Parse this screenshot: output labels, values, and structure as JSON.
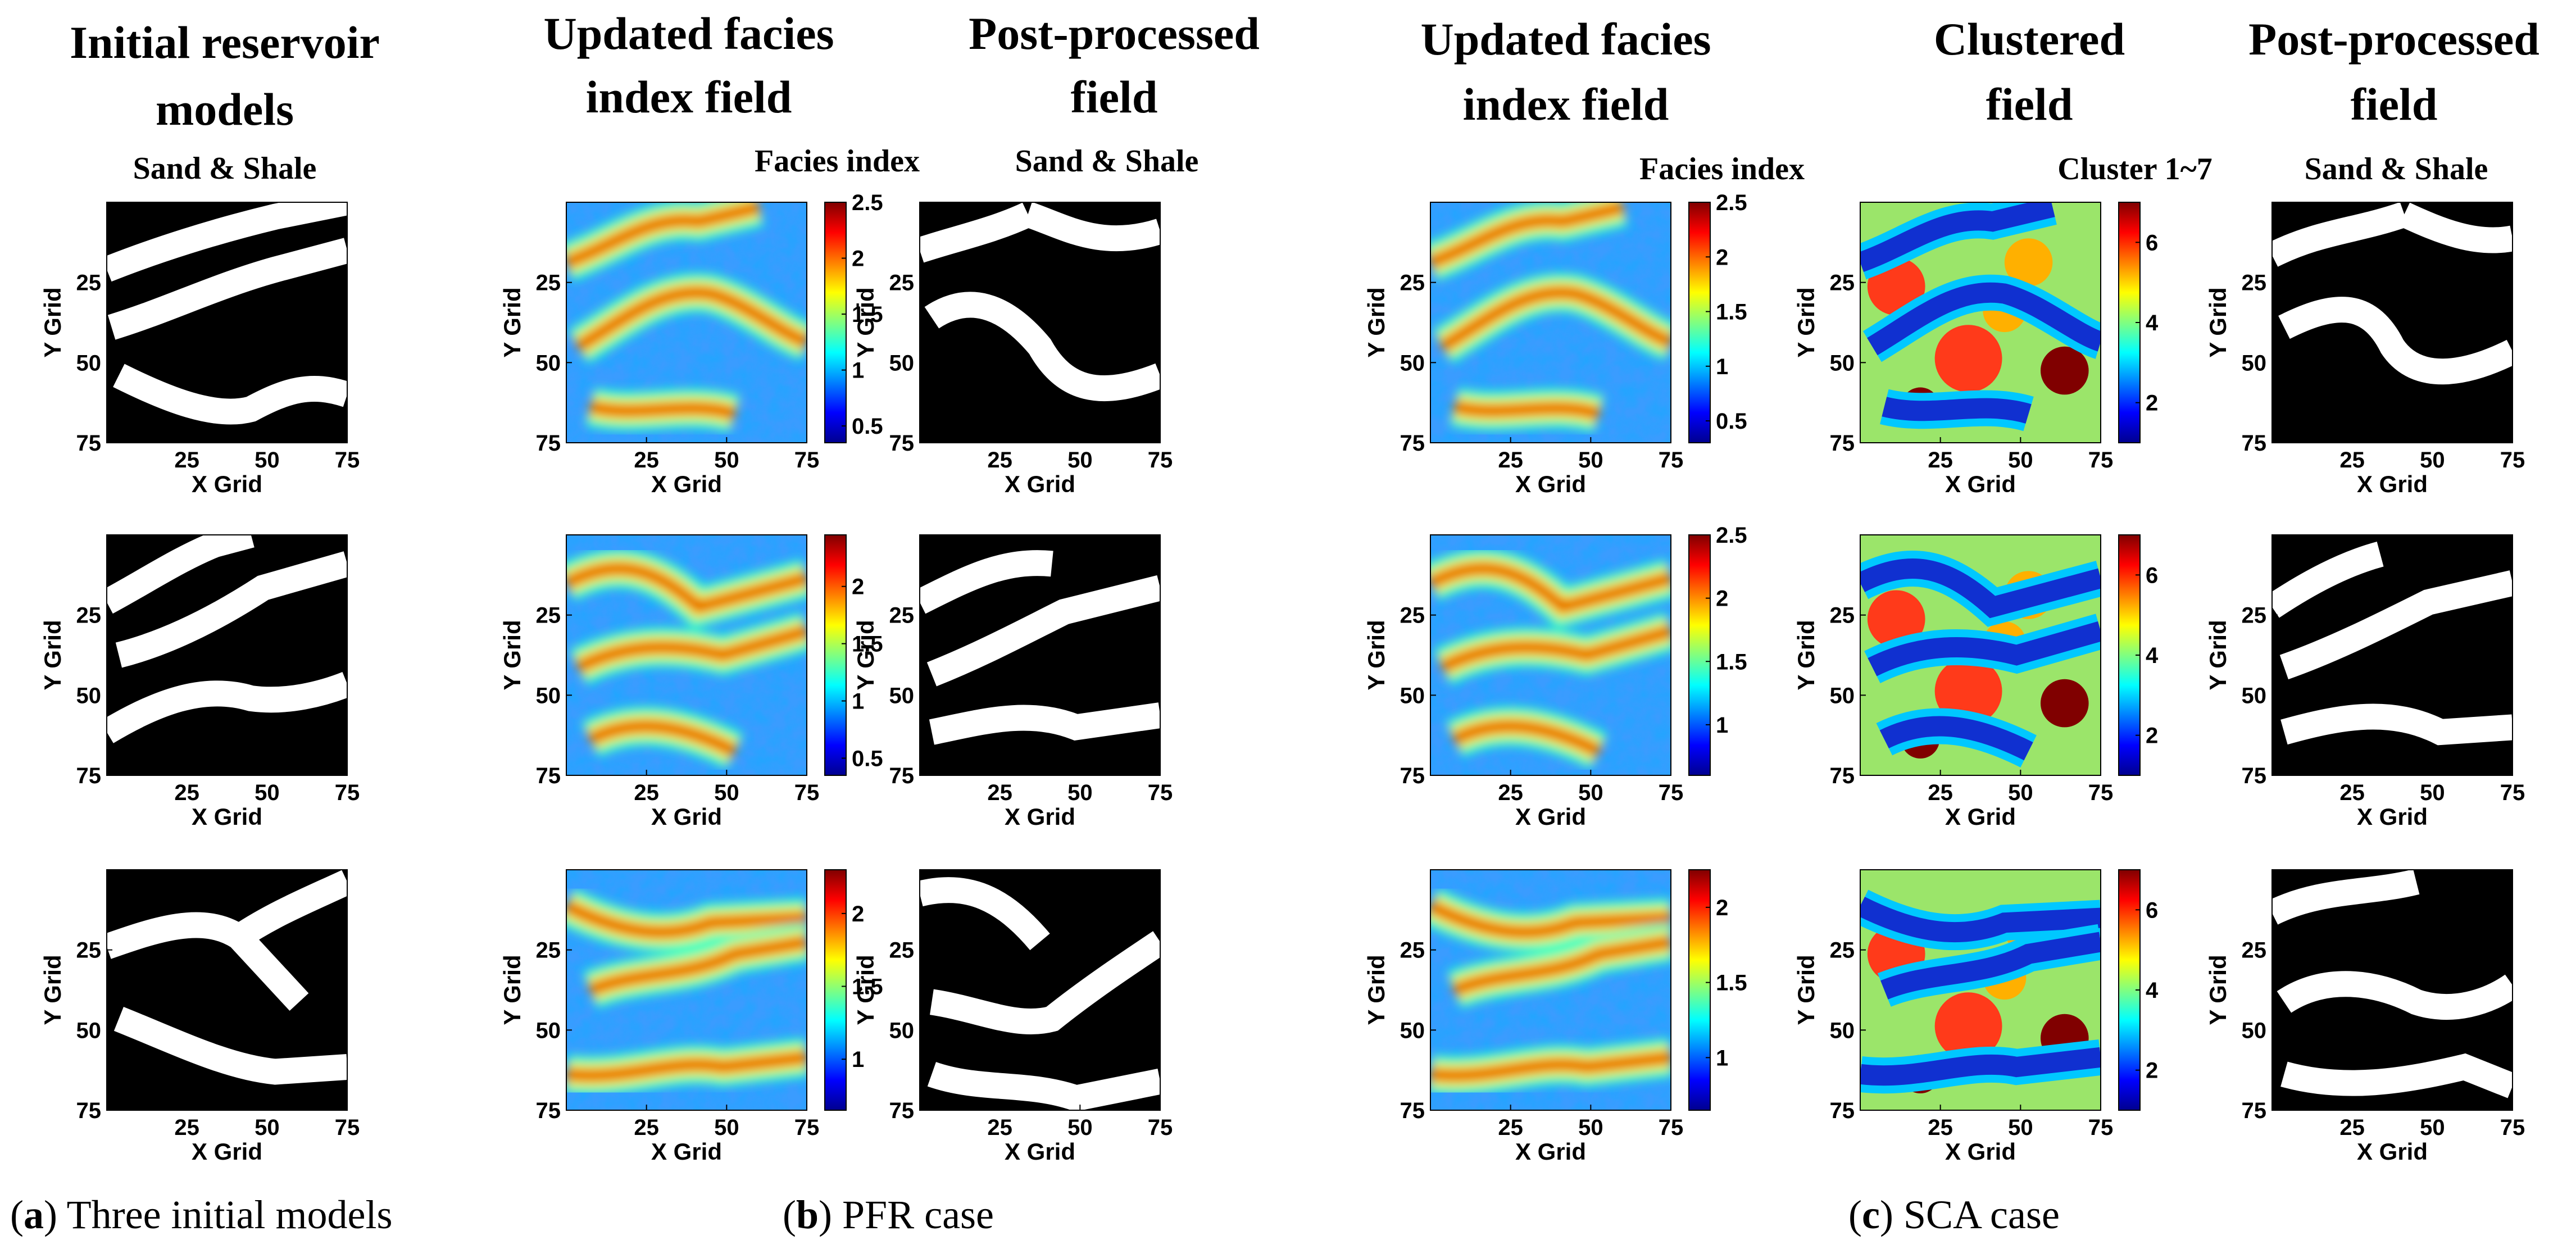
{
  "figure": {
    "column_titles": {
      "initial": [
        "Initial reservoir",
        "models"
      ],
      "pfr_updated": [
        "Updated facies",
        "index field"
      ],
      "pfr_post": [
        "Post-processed",
        "field"
      ],
      "sca_updated": [
        "Updated facies",
        "index field"
      ],
      "sca_clustered": [
        "Clustered",
        "field"
      ],
      "sca_post": [
        "Post-processed",
        "field"
      ]
    },
    "legend_labels": {
      "sand_shale": "Sand & Shale",
      "facies_index": "Facies index",
      "cluster": "Cluster 1~7"
    },
    "captions": {
      "a_letter": "a",
      "a_text": " Three initial models",
      "b_letter": "b",
      "b_text": " PFR case",
      "c_letter": "c",
      "c_text": " SCA case"
    },
    "axis": {
      "xlabel": "X Grid",
      "ylabel": "Y Grid",
      "ticks": [
        "25",
        "50",
        "75"
      ]
    },
    "colors": {
      "sand": "#ffffff",
      "shale": "#000000",
      "jet_low": "#00008f",
      "jet_high": "#800000"
    }
  },
  "chart_data": [
    {
      "type": "heatmap",
      "panel": "initial",
      "row": 1,
      "title": "Sand & Shale",
      "grid": [
        75,
        75
      ],
      "xlabel": "X Grid",
      "ylabel": "Y Grid",
      "xticks": [
        25,
        50,
        75
      ],
      "yticks": [
        25,
        50,
        75
      ],
      "categories": [
        "Shale",
        "Sand"
      ]
    },
    {
      "type": "heatmap",
      "panel": "initial",
      "row": 2,
      "grid": [
        75,
        75
      ],
      "xlabel": "X Grid",
      "ylabel": "Y Grid",
      "xticks": [
        25,
        50,
        75
      ],
      "yticks": [
        25,
        50,
        75
      ],
      "categories": [
        "Shale",
        "Sand"
      ]
    },
    {
      "type": "heatmap",
      "panel": "initial",
      "row": 3,
      "grid": [
        75,
        75
      ],
      "xlabel": "X Grid",
      "ylabel": "Y Grid",
      "xticks": [
        25,
        50,
        75
      ],
      "yticks": [
        25,
        50,
        75
      ],
      "categories": [
        "Shale",
        "Sand"
      ]
    },
    {
      "type": "heatmap",
      "panel": "pfr_updated",
      "row": 1,
      "title": "Facies index",
      "colorscale": "jet",
      "clim": [
        0.35,
        2.5
      ],
      "colorbar_ticks": [
        "0.5",
        "1",
        "1.5",
        "2",
        "2.5"
      ],
      "grid": [
        75,
        75
      ],
      "xlabel": "X Grid",
      "ylabel": "Y Grid",
      "xticks": [
        25,
        50,
        75
      ],
      "yticks": [
        25,
        50,
        75
      ]
    },
    {
      "type": "heatmap",
      "panel": "pfr_updated",
      "row": 2,
      "colorscale": "jet",
      "clim": [
        0.35,
        2.45
      ],
      "colorbar_ticks": [
        "0.5",
        "1",
        "1.5",
        "2"
      ],
      "grid": [
        75,
        75
      ],
      "xlabel": "X Grid",
      "ylabel": "Y Grid",
      "xticks": [
        25,
        50,
        75
      ],
      "yticks": [
        25,
        50,
        75
      ]
    },
    {
      "type": "heatmap",
      "panel": "pfr_updated",
      "row": 3,
      "colorscale": "jet",
      "clim": [
        0.65,
        2.3
      ],
      "colorbar_ticks": [
        "1",
        "1.5",
        "2"
      ],
      "grid": [
        75,
        75
      ],
      "xlabel": "X Grid",
      "ylabel": "Y Grid",
      "xticks": [
        25,
        50,
        75
      ],
      "yticks": [
        25,
        50,
        75
      ]
    },
    {
      "type": "heatmap",
      "panel": "pfr_post",
      "row": 1,
      "title": "Sand & Shale",
      "grid": [
        75,
        75
      ],
      "xlabel": "X Grid",
      "ylabel": "Y Grid",
      "xticks": [
        25,
        50,
        75
      ],
      "yticks": [
        25,
        50,
        75
      ],
      "categories": [
        "Shale",
        "Sand"
      ]
    },
    {
      "type": "heatmap",
      "panel": "pfr_post",
      "row": 2,
      "grid": [
        75,
        75
      ],
      "xlabel": "X Grid",
      "ylabel": "Y Grid",
      "xticks": [
        25,
        50,
        75
      ],
      "yticks": [
        25,
        50,
        75
      ],
      "categories": [
        "Shale",
        "Sand"
      ]
    },
    {
      "type": "heatmap",
      "panel": "pfr_post",
      "row": 3,
      "grid": [
        75,
        75
      ],
      "xlabel": "X Grid",
      "ylabel": "Y Grid",
      "xticks": [
        25,
        50,
        75
      ],
      "yticks": [
        25,
        50,
        75
      ],
      "categories": [
        "Shale",
        "Sand"
      ]
    },
    {
      "type": "heatmap",
      "panel": "sca_updated",
      "row": 1,
      "title": "Facies index",
      "colorscale": "jet",
      "clim": [
        0.3,
        2.5
      ],
      "colorbar_ticks": [
        "0.5",
        "1",
        "1.5",
        "2",
        "2.5"
      ],
      "grid": [
        75,
        75
      ],
      "xlabel": "X Grid",
      "ylabel": "Y Grid",
      "xticks": [
        25,
        50,
        75
      ],
      "yticks": [
        25,
        50,
        75
      ]
    },
    {
      "type": "heatmap",
      "panel": "sca_updated",
      "row": 2,
      "colorscale": "jet",
      "clim": [
        0.6,
        2.5
      ],
      "colorbar_ticks": [
        "1",
        "1.5",
        "2",
        "2.5"
      ],
      "grid": [
        75,
        75
      ],
      "xlabel": "X Grid",
      "ylabel": "Y Grid",
      "xticks": [
        25,
        50,
        75
      ],
      "yticks": [
        25,
        50,
        75
      ]
    },
    {
      "type": "heatmap",
      "panel": "sca_updated",
      "row": 3,
      "colorscale": "jet",
      "clim": [
        0.65,
        2.25
      ],
      "colorbar_ticks": [
        "1",
        "1.5",
        "2"
      ],
      "grid": [
        75,
        75
      ],
      "xlabel": "X Grid",
      "ylabel": "Y Grid",
      "xticks": [
        25,
        50,
        75
      ],
      "yticks": [
        25,
        50,
        75
      ]
    },
    {
      "type": "heatmap",
      "panel": "sca_clustered",
      "row": 1,
      "title": "Cluster 1~7",
      "colorscale": "jet",
      "clim": [
        1,
        7
      ],
      "colorbar_ticks": [
        "2",
        "4",
        "6"
      ],
      "grid": [
        75,
        75
      ],
      "xlabel": "X Grid",
      "ylabel": "Y Grid",
      "xticks": [
        25,
        50,
        75
      ],
      "yticks": [
        25,
        50,
        75
      ]
    },
    {
      "type": "heatmap",
      "panel": "sca_clustered",
      "row": 2,
      "colorscale": "jet",
      "clim": [
        1,
        7
      ],
      "colorbar_ticks": [
        "2",
        "4",
        "6"
      ],
      "grid": [
        75,
        75
      ],
      "xlabel": "X Grid",
      "ylabel": "Y Grid",
      "xticks": [
        25,
        50,
        75
      ],
      "yticks": [
        25,
        50,
        75
      ]
    },
    {
      "type": "heatmap",
      "panel": "sca_clustered",
      "row": 3,
      "colorscale": "jet",
      "clim": [
        1,
        7
      ],
      "colorbar_ticks": [
        "2",
        "4",
        "6"
      ],
      "grid": [
        75,
        75
      ],
      "xlabel": "X Grid",
      "ylabel": "Y Grid",
      "xticks": [
        25,
        50,
        75
      ],
      "yticks": [
        25,
        50,
        75
      ]
    },
    {
      "type": "heatmap",
      "panel": "sca_post",
      "row": 1,
      "title": "Sand & Shale",
      "grid": [
        75,
        75
      ],
      "xlabel": "X Grid",
      "ylabel": "Y Grid",
      "xticks": [
        25,
        50,
        75
      ],
      "yticks": [
        25,
        50,
        75
      ],
      "categories": [
        "Shale",
        "Sand"
      ]
    },
    {
      "type": "heatmap",
      "panel": "sca_post",
      "row": 2,
      "grid": [
        75,
        75
      ],
      "xlabel": "X Grid",
      "ylabel": "Y Grid",
      "xticks": [
        25,
        50,
        75
      ],
      "yticks": [
        25,
        50,
        75
      ],
      "categories": [
        "Shale",
        "Sand"
      ]
    },
    {
      "type": "heatmap",
      "panel": "sca_post",
      "row": 3,
      "grid": [
        75,
        75
      ],
      "xlabel": "X Grid",
      "ylabel": "Y Grid",
      "xticks": [
        25,
        50,
        75
      ],
      "yticks": [
        25,
        50,
        75
      ],
      "categories": [
        "Shale",
        "Sand"
      ]
    }
  ]
}
